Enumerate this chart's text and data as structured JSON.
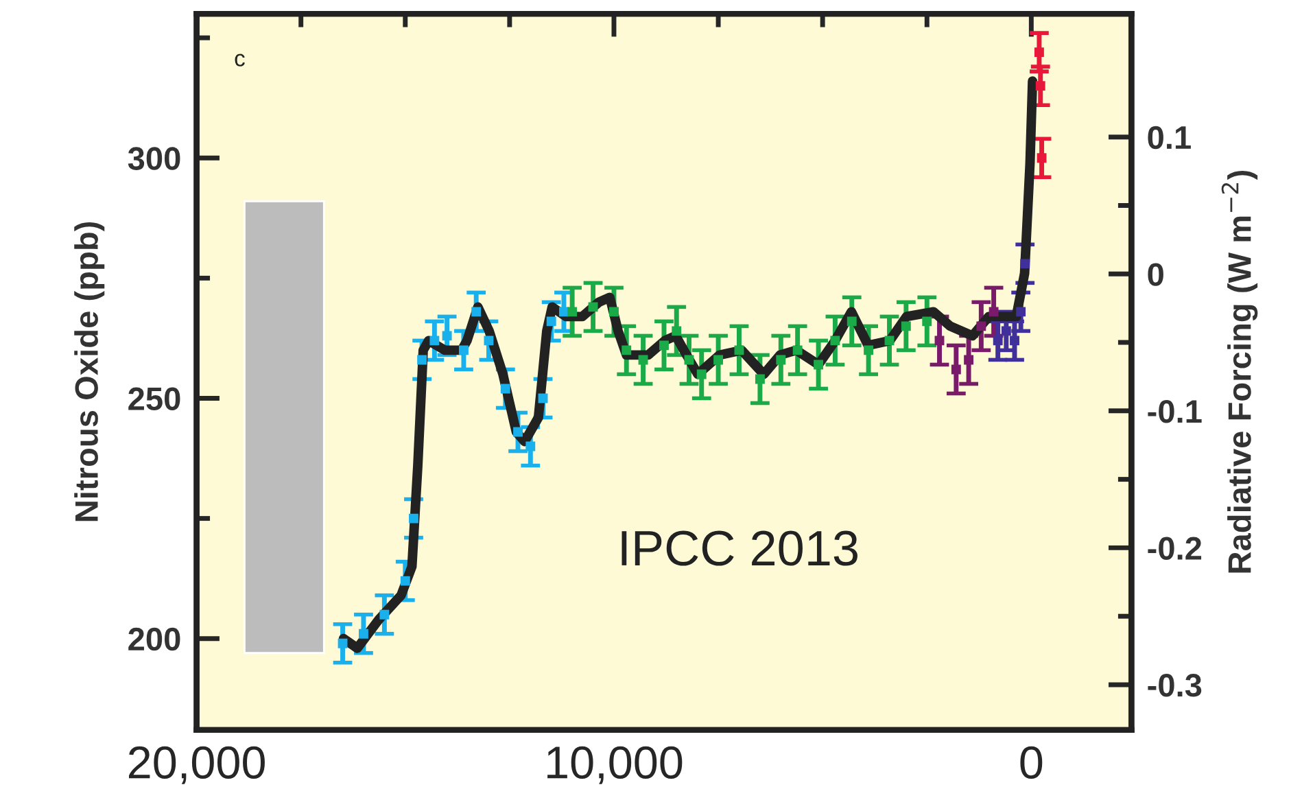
{
  "chart_data": {
    "type": "line",
    "ylabel": "Nitrous Oxide (ppb)",
    "y2label": "Radiative Forcing (W m$^{−2}$)",
    "annotations": [
      "c",
      "IPCC 2013"
    ],
    "xlim": [
      20000,
      -2400
    ],
    "xticks": [
      {
        "value": 20000,
        "label": "20,000"
      },
      {
        "value": 17500,
        "label": null
      },
      {
        "value": 15000,
        "label": null
      },
      {
        "value": 12500,
        "label": null
      },
      {
        "value": 10000,
        "label": "10,000"
      },
      {
        "value": 7500,
        "label": null
      },
      {
        "value": 5000,
        "label": null
      },
      {
        "value": 2500,
        "label": null
      },
      0
    ],
    "ylim": [
      181,
      330
    ],
    "yticks": [
      200,
      {
        "value": 225,
        "label": null
      },
      250,
      {
        "value": 275,
        "label": null
      },
      300,
      {
        "value": 325,
        "label": null
      }
    ],
    "y2lim": [
      -0.333,
      0.19
    ],
    "y2ticks": [
      -0.3,
      {
        "value": -0.25,
        "label": null
      },
      -0.2,
      {
        "value": -0.15,
        "label": null
      },
      -0.1,
      {
        "value": -0.05,
        "label": null
      },
      0,
      {
        "value": 0.05,
        "label": null
      },
      0.1
    ],
    "grid": false,
    "series": [
      {
        "type": "bar",
        "color": "#bcbcbc",
        "x": [
          17900
        ],
        "base": [
          197
        ],
        "values": [
          94
        ]
      },
      {
        "type": "scatter",
        "color": "#1ab0ec",
        "marker": "square",
        "x": [
          16500,
          16000,
          15500,
          15000,
          14800,
          14600,
          14300,
          14000,
          13600,
          13300,
          13000,
          12600,
          12300,
          12000,
          11700,
          11500,
          11200
        ],
        "values": [
          199,
          201,
          205,
          212,
          225,
          258,
          262,
          263,
          260,
          268,
          262,
          252,
          243,
          240,
          250,
          266,
          268
        ],
        "errors": [
          4,
          4,
          4,
          4,
          4,
          4,
          4,
          4,
          4,
          4,
          4,
          4,
          4,
          4,
          4,
          4,
          4
        ]
      },
      {
        "type": "scatter",
        "color": "#1aab48",
        "marker": "square",
        "x": [
          11000,
          10500,
          10000,
          9700,
          9300,
          8800,
          8500,
          8200,
          7900,
          7500,
          7000,
          6500,
          6000,
          5600,
          5100,
          4700,
          4300,
          3900,
          3400,
          3000,
          2500
        ],
        "values": [
          268,
          269,
          268,
          260,
          258,
          261,
          264,
          258,
          255,
          258,
          260,
          254,
          258,
          260,
          257,
          262,
          266,
          260,
          262,
          265,
          266
        ],
        "errors": [
          5,
          5,
          5,
          5,
          5,
          5,
          5,
          5,
          5,
          5,
          5,
          5,
          5,
          5,
          5,
          5,
          5,
          5,
          5,
          5,
          5
        ]
      },
      {
        "type": "scatter",
        "color": "#7a1a6a",
        "marker": "square",
        "x": [
          2200,
          1800,
          1500,
          1200,
          900
        ],
        "values": [
          262,
          256,
          258,
          265,
          268
        ],
        "errors": [
          5,
          5,
          5,
          5,
          5
        ]
      },
      {
        "type": "scatter",
        "color": "#40309a",
        "marker": "square",
        "x": [
          800,
          600,
          400,
          250,
          150
        ],
        "values": [
          262,
          264,
          262,
          268,
          278
        ],
        "errors": [
          4,
          4,
          4,
          4,
          4
        ]
      },
      {
        "type": "scatter",
        "color": "#e8183a",
        "marker": "square",
        "x": [
          -250,
          -220,
          -190
        ],
        "values": [
          300,
          315,
          322
        ],
        "errors": [
          4,
          4,
          4
        ]
      },
      {
        "color": "#222222",
        "x": [
          16480,
          16150,
          15630,
          15100,
          14840,
          14700,
          14570,
          14440,
          14050,
          13650,
          13520,
          13260,
          12990,
          12660,
          12340,
          12140,
          11810,
          11610,
          11480,
          11150,
          10760,
          10360,
          10100,
          9900,
          9700,
          9180,
          8780,
          8520,
          8260,
          7990,
          7470,
          6940,
          6410,
          6020,
          5630,
          5100,
          4700,
          4310,
          3910,
          3390,
          2990,
          2340,
          1940,
          1410,
          1020,
          360,
          160,
          30,
          -30
        ],
        "values": [
          200,
          198,
          204,
          209,
          215,
          236,
          260,
          262,
          260,
          260,
          262,
          269,
          264,
          255,
          243,
          241,
          246,
          264,
          269,
          267,
          267,
          270,
          271,
          264,
          259,
          259,
          262,
          263,
          259,
          255,
          259,
          260,
          255,
          259,
          260,
          257,
          262,
          268,
          261,
          262,
          267,
          268,
          265,
          263,
          267,
          267,
          276,
          299,
          316
        ]
      }
    ]
  }
}
